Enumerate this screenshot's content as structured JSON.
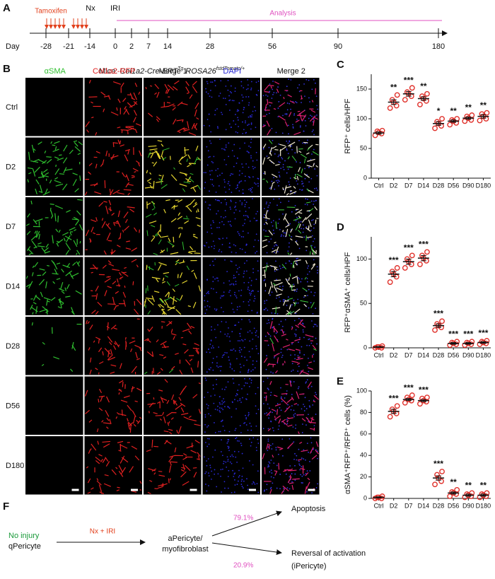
{
  "panel_a": {
    "letter": "A",
    "day_label": "Day",
    "days": [
      "-28",
      "-21",
      "-14",
      "0",
      "2",
      "7",
      "14",
      "28",
      "56",
      "90",
      "180"
    ],
    "tamoxifen": "Tamoxifen",
    "nx": "Nx",
    "iri": "IRI",
    "analysis": "Analysis"
  },
  "panel_b": {
    "letter": "B",
    "mice_prefix": "Mice:",
    "gene1": "Col1a2-Cre-ERT",
    "sup1": "Tg",
    "gene2": "ROSA26",
    "sup2": "fstdTomato/+",
    "columns": [
      "αSMA",
      "Col1a2-RFP",
      "Merge 1",
      "DAPI",
      "Merge 2"
    ],
    "rows": [
      "Ctrl",
      "D2",
      "D7",
      "D14",
      "D28",
      "D56",
      "D180"
    ]
  },
  "chart_data": [
    {
      "panel": "C",
      "type": "strip",
      "ylabel": "RFP⁺ cells/HPF",
      "color": "#e0302a",
      "categories": [
        "Ctrl",
        "D2",
        "D7",
        "D14",
        "D28",
        "D56",
        "D90",
        "D180"
      ],
      "means": [
        76,
        128,
        142,
        134,
        92,
        96,
        101,
        104
      ],
      "sem": [
        2,
        4,
        4,
        3,
        3,
        2,
        2,
        3
      ],
      "points": [
        [
          72,
          75,
          77,
          79,
          80
        ],
        [
          118,
          122,
          128,
          132,
          140
        ],
        [
          132,
          138,
          142,
          145,
          152
        ],
        [
          124,
          130,
          134,
          138,
          142
        ],
        [
          84,
          88,
          92,
          95,
          100
        ],
        [
          90,
          93,
          96,
          98,
          100
        ],
        [
          96,
          98,
          101,
          104,
          106
        ],
        [
          97,
          100,
          104,
          108,
          110
        ]
      ],
      "significance": [
        null,
        "**",
        "***",
        "**",
        "*",
        "**",
        "**",
        "**"
      ],
      "ylim": [
        0,
        175
      ],
      "yticks": [
        0,
        50,
        100,
        150
      ]
    },
    {
      "panel": "D",
      "type": "strip",
      "ylabel": "RFP⁺αSMA⁺ cells/HPF",
      "color": "#e0302a",
      "categories": [
        "Ctrl",
        "D2",
        "D7",
        "D14",
        "D28",
        "D56",
        "D90",
        "D180"
      ],
      "means": [
        1,
        83,
        97,
        101,
        25,
        5,
        5,
        6
      ],
      "sem": [
        0.5,
        3,
        3,
        3,
        2,
        1,
        1,
        1
      ],
      "points": [
        [
          0,
          0,
          1,
          1,
          2
        ],
        [
          74,
          80,
          83,
          86,
          90
        ],
        [
          90,
          94,
          97,
          100,
          104
        ],
        [
          94,
          98,
          101,
          104,
          108
        ],
        [
          20,
          23,
          25,
          27,
          30
        ],
        [
          3,
          4,
          5,
          6,
          7
        ],
        [
          3,
          4,
          5,
          6,
          7
        ],
        [
          4,
          5,
          6,
          7,
          8
        ]
      ],
      "significance": [
        null,
        "***",
        "***",
        "***",
        "***",
        "***",
        "***",
        "***"
      ],
      "ylim": [
        0,
        125
      ],
      "yticks": [
        0,
        50,
        100
      ]
    },
    {
      "panel": "E",
      "type": "strip",
      "ylabel": "αSMA⁺RFP⁺/RFP⁺ cells (%)",
      "color": "#e0302a",
      "categories": [
        "Ctrl",
        "D2",
        "D7",
        "D14",
        "D28",
        "D56",
        "D90",
        "D180"
      ],
      "means": [
        1,
        81,
        92,
        91,
        19,
        5,
        3,
        3
      ],
      "sem": [
        0.5,
        2,
        1,
        1,
        2,
        1,
        1,
        1
      ],
      "points": [
        [
          0,
          0,
          1,
          1,
          2
        ],
        [
          76,
          79,
          81,
          83,
          86
        ],
        [
          89,
          91,
          92,
          94,
          96
        ],
        [
          88,
          90,
          91,
          93,
          94
        ],
        [
          13,
          16,
          19,
          22,
          25
        ],
        [
          2,
          4,
          5,
          6,
          8
        ],
        [
          1,
          2,
          3,
          4,
          5
        ],
        [
          1,
          2,
          3,
          4,
          5
        ]
      ],
      "significance": [
        null,
        "***",
        "***",
        "***",
        "***",
        "**",
        "**",
        "**"
      ],
      "ylim": [
        0,
        100
      ],
      "yticks": [
        0,
        20,
        40,
        60,
        80,
        100
      ]
    }
  ],
  "panel_f": {
    "letter": "F",
    "no_injury": "No injury",
    "qpericyte": "qPericyte",
    "nx_iri": "Nx + IRI",
    "apericyte1": "aPericyte/",
    "apericyte2": "myofibroblast",
    "pct_apoptosis": "79.1%",
    "apoptosis": "Apoptosis",
    "pct_reversal": "20.9%",
    "reversal": "Reversal of activation",
    "ipericyte": "(iPericyte)"
  }
}
